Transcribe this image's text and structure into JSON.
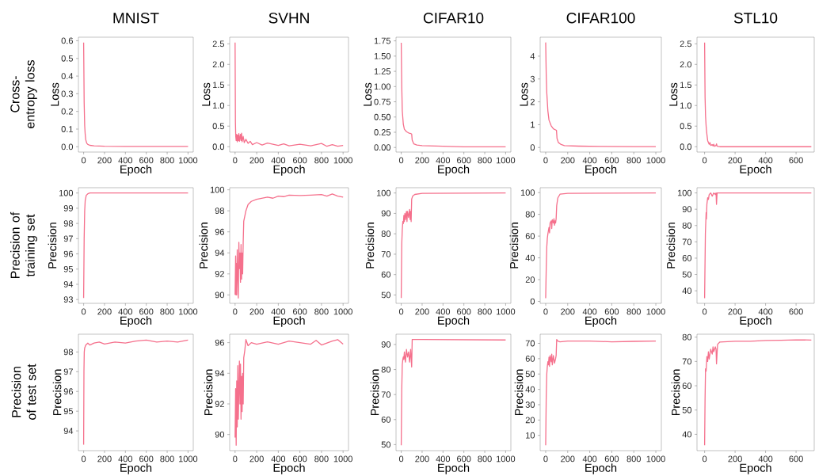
{
  "chart_data": [
    {
      "type": "line",
      "title": "MNIST",
      "xlabel": "Epoch",
      "ylabel": "Loss",
      "annotations": [
        "Cross-entropy loss"
      ],
      "color": "#f5708c",
      "xlim": [
        -50,
        1050
      ],
      "ylim": [
        -0.03,
        0.62
      ],
      "xticks": [
        0,
        200,
        400,
        600,
        800,
        1000
      ],
      "yticks": [
        {
          "value": 0,
          "label": "0.0"
        },
        0.1,
        0.2,
        0.3,
        0.4,
        0.5,
        0.6
      ],
      "x": [
        0,
        5,
        10,
        15,
        20,
        30,
        40,
        60,
        100,
        200,
        400,
        600,
        800,
        1000
      ],
      "values": [
        0.59,
        0.25,
        0.12,
        0.07,
        0.04,
        0.02,
        0.013,
        0.008,
        0.005,
        0.003,
        0.002,
        0.002,
        0.002,
        0.002
      ]
    },
    {
      "type": "line",
      "title": "SVHN",
      "xlabel": "Epoch",
      "ylabel": "Loss",
      "color": "#f5708c",
      "xlim": [
        -50,
        1050
      ],
      "ylim": [
        -0.13,
        2.66
      ],
      "xticks": [
        0,
        200,
        400,
        600,
        800,
        1000
      ],
      "yticks": [
        {
          "value": 0,
          "label": "0.0"
        },
        0.5,
        {
          "value": 1,
          "label": "1.0"
        },
        1.5,
        {
          "value": 2,
          "label": "2.0"
        },
        2.5
      ],
      "x": [
        0,
        3,
        6,
        10,
        15,
        20,
        25,
        30,
        35,
        40,
        50,
        55,
        60,
        65,
        75,
        85,
        100,
        120,
        140,
        160,
        200,
        250,
        300,
        400,
        450,
        500,
        600,
        700,
        800,
        850,
        900,
        950,
        1000
      ],
      "values": [
        2.53,
        0.6,
        0.25,
        0.15,
        0.3,
        0.12,
        0.28,
        0.15,
        0.32,
        0.13,
        0.3,
        0.15,
        0.33,
        0.12,
        0.25,
        0.1,
        0.18,
        0.08,
        0.13,
        0.05,
        0.1,
        0.04,
        0.09,
        0.03,
        0.07,
        0.02,
        0.06,
        0.02,
        0.08,
        0.01,
        0.05,
        0.01,
        0.03
      ]
    },
    {
      "type": "line",
      "title": "CIFAR10",
      "xlabel": "Epoch",
      "ylabel": "Loss",
      "color": "#f5708c",
      "xlim": [
        -50,
        1050
      ],
      "ylim": [
        -0.075,
        1.81
      ],
      "xticks": [
        0,
        200,
        400,
        600,
        800,
        1000
      ],
      "yticks": [
        {
          "value": 0,
          "label": "0.00"
        },
        0.25,
        {
          "value": 0.5,
          "label": "0.50"
        },
        0.75,
        {
          "value": 1,
          "label": "1.00"
        },
        1.25,
        {
          "value": 1.5,
          "label": "1.50"
        },
        1.75
      ],
      "x": [
        0,
        5,
        10,
        20,
        30,
        50,
        70,
        90,
        100,
        105,
        120,
        150,
        200,
        400,
        600,
        800,
        1000
      ],
      "values": [
        1.72,
        1.0,
        0.6,
        0.38,
        0.3,
        0.26,
        0.24,
        0.23,
        0.22,
        0.12,
        0.06,
        0.04,
        0.03,
        0.02,
        0.01,
        0.01,
        0.01
      ]
    },
    {
      "type": "line",
      "title": "CIFAR100",
      "xlabel": "Epoch",
      "ylabel": "Loss",
      "color": "#f5708c",
      "xlim": [
        -50,
        1050
      ],
      "ylim": [
        -0.2,
        4.83
      ],
      "xticks": [
        0,
        200,
        400,
        600,
        800,
        1000
      ],
      "yticks": [
        0,
        1,
        2,
        3,
        4
      ],
      "x": [
        0,
        5,
        10,
        20,
        30,
        50,
        70,
        90,
        98,
        103,
        115,
        140,
        170,
        300,
        500,
        800,
        1000
      ],
      "values": [
        4.6,
        3.2,
        2.4,
        1.6,
        1.2,
        0.95,
        0.82,
        0.77,
        0.75,
        0.4,
        0.22,
        0.13,
        0.08,
        0.06,
        0.05,
        0.04,
        0.04
      ]
    },
    {
      "type": "line",
      "title": "STL10",
      "xlabel": "Epoch",
      "ylabel": "Loss",
      "color": "#f5708c",
      "xlim": [
        -50,
        719
      ],
      "ylim": [
        -0.13,
        2.66
      ],
      "xticks": [
        0,
        200,
        400,
        600
      ],
      "yticks": [
        {
          "value": 0,
          "label": "0.0"
        },
        0.5,
        {
          "value": 1,
          "label": "1.0"
        },
        1.5,
        {
          "value": 2,
          "label": "2.0"
        },
        2.5
      ],
      "x": [
        0,
        3,
        6,
        10,
        15,
        20,
        25,
        30,
        35,
        40,
        50,
        55,
        60,
        65,
        75,
        78,
        82,
        100,
        200,
        400,
        600,
        700
      ],
      "values": [
        2.53,
        1.2,
        0.75,
        0.5,
        0.3,
        0.15,
        0.1,
        0.06,
        0.1,
        0.03,
        0.05,
        0.02,
        0.06,
        0.01,
        0.03,
        0.07,
        0.01,
        0,
        0,
        0,
        0,
        0
      ]
    },
    {
      "type": "line",
      "xlabel": "Epoch",
      "ylabel": "Precision",
      "annotations": [
        "Precision of training set"
      ],
      "color": "#f5708c",
      "xlim": [
        -50,
        1050
      ],
      "ylim": [
        92.75,
        100.35
      ],
      "xticks": [
        0,
        200,
        400,
        600,
        800,
        1000
      ],
      "yticks": [
        93,
        94,
        95,
        96,
        97,
        98,
        99,
        100
      ],
      "x": [
        0,
        5,
        10,
        15,
        25,
        40,
        60,
        200,
        400,
        600,
        800,
        1000
      ],
      "values": [
        93.1,
        97,
        98.8,
        99.5,
        99.85,
        99.95,
        100,
        100,
        100,
        100,
        100,
        100
      ]
    },
    {
      "type": "line",
      "xlabel": "Epoch",
      "ylabel": "Precision",
      "color": "#f5708c",
      "xlim": [
        -50,
        1050
      ],
      "ylim": [
        89.2,
        100.2
      ],
      "xticks": [
        0,
        200,
        400,
        600,
        800,
        1000
      ],
      "yticks": [
        90,
        92,
        94,
        96,
        98,
        100
      ],
      "x": [
        0,
        5,
        8,
        12,
        15,
        20,
        25,
        30,
        35,
        40,
        45,
        50,
        55,
        60,
        65,
        70,
        75,
        80,
        90,
        100,
        120,
        150,
        200,
        250,
        300,
        350,
        400,
        450,
        500,
        600,
        700,
        800,
        850,
        900,
        950,
        1000
      ],
      "values": [
        90,
        93.7,
        90,
        93,
        90,
        94.3,
        92,
        89.7,
        95,
        92.5,
        94,
        91.2,
        94.8,
        91.5,
        94,
        92,
        95,
        97,
        97.5,
        98,
        98.6,
        98.9,
        99.1,
        99.2,
        99.3,
        99.2,
        99.4,
        99.35,
        99.5,
        99.45,
        99.5,
        99.55,
        99.4,
        99.6,
        99.4,
        99.3
      ]
    },
    {
      "type": "line",
      "xlabel": "Epoch",
      "ylabel": "Precision",
      "color": "#f5708c",
      "xlim": [
        -50,
        1050
      ],
      "ylim": [
        45.9,
        102.6
      ],
      "xticks": [
        0,
        200,
        400,
        600,
        800,
        1000
      ],
      "yticks": [
        50,
        60,
        70,
        80,
        90,
        100
      ],
      "x": [
        0,
        5,
        10,
        15,
        20,
        25,
        30,
        35,
        40,
        50,
        55,
        60,
        70,
        80,
        85,
        90,
        95,
        100,
        110,
        130,
        200,
        1000
      ],
      "values": [
        48.5,
        75,
        82,
        86,
        85,
        89,
        86,
        90,
        87,
        91,
        86,
        91,
        88,
        92,
        87,
        91,
        86,
        97,
        98.5,
        99.3,
        99.8,
        100
      ]
    },
    {
      "type": "line",
      "xlabel": "Epoch",
      "ylabel": "Precision",
      "color": "#f5708c",
      "xlim": [
        -50,
        1050
      ],
      "ylim": [
        -1.8,
        104.5
      ],
      "xticks": [
        0,
        200,
        400,
        600,
        800,
        1000
      ],
      "yticks": [
        0,
        20,
        40,
        60,
        80,
        100
      ],
      "x": [
        0,
        5,
        10,
        15,
        20,
        25,
        30,
        35,
        40,
        50,
        55,
        60,
        70,
        75,
        80,
        85,
        90,
        95,
        100,
        110,
        130,
        200,
        500,
        1000
      ],
      "values": [
        3,
        30,
        50,
        58,
        62,
        65,
        68,
        63,
        72,
        74,
        67,
        75,
        72,
        76,
        70,
        74,
        72,
        76,
        88,
        95,
        98.5,
        99.3,
        99.5,
        99.7
      ]
    },
    {
      "type": "line",
      "xlabel": "Epoch",
      "ylabel": "Precision",
      "color": "#f5708c",
      "xlim": [
        -50,
        719
      ],
      "ylim": [
        32.3,
        103.2
      ],
      "xticks": [
        0,
        200,
        400,
        600
      ],
      "yticks": [
        40,
        50,
        60,
        70,
        80,
        90,
        100
      ],
      "x": [
        0,
        5,
        10,
        12,
        15,
        20,
        25,
        30,
        40,
        50,
        60,
        70,
        75,
        78,
        82,
        200,
        700
      ],
      "values": [
        35.5,
        75,
        88,
        84,
        93,
        97,
        96,
        99,
        100,
        98,
        100,
        99,
        100,
        93,
        100,
        100,
        100
      ]
    },
    {
      "type": "line",
      "xlabel": "Epoch",
      "ylabel": "Precision",
      "annotations": [
        "Precision of test set"
      ],
      "color": "#f5708c",
      "xlim": [
        -50,
        1050
      ],
      "ylim": [
        93.0,
        98.9
      ],
      "xticks": [
        0,
        200,
        400,
        600,
        800,
        1000
      ],
      "yticks": [
        94,
        95,
        96,
        97,
        98
      ],
      "x": [
        0,
        3,
        6,
        10,
        20,
        40,
        60,
        100,
        150,
        200,
        300,
        400,
        500,
        600,
        700,
        800,
        900,
        1000
      ],
      "values": [
        93.3,
        97,
        98,
        98.2,
        98.35,
        98.45,
        98.35,
        98.45,
        98.5,
        98.4,
        98.5,
        98.45,
        98.55,
        98.6,
        98.5,
        98.55,
        98.5,
        98.6
      ]
    },
    {
      "type": "line",
      "xlabel": "Epoch",
      "ylabel": "Precision",
      "color": "#f5708c",
      "xlim": [
        -50,
        1050
      ],
      "ylim": [
        88.95,
        96.55
      ],
      "xticks": [
        0,
        200,
        400,
        600,
        800,
        1000
      ],
      "yticks": [
        90,
        92,
        94,
        96
      ],
      "x": [
        0,
        5,
        10,
        15,
        20,
        25,
        30,
        35,
        40,
        45,
        50,
        55,
        60,
        65,
        70,
        75,
        80,
        90,
        100,
        120,
        150,
        200,
        300,
        400,
        500,
        600,
        700,
        750,
        800,
        900,
        950,
        1000
      ],
      "values": [
        89.8,
        93,
        89.3,
        93.5,
        90.5,
        94.5,
        91,
        93,
        94.8,
        92,
        94.6,
        91,
        93.8,
        91.5,
        94,
        92,
        95,
        95.5,
        96.2,
        95.8,
        96,
        95.9,
        96.05,
        95.9,
        96.1,
        96,
        95.9,
        96.15,
        95.85,
        96.1,
        96.2,
        95.9
      ]
    },
    {
      "type": "line",
      "xlabel": "Epoch",
      "ylabel": "Precision",
      "color": "#f5708c",
      "xlim": [
        -50,
        1050
      ],
      "ylim": [
        47.6,
        94.1
      ],
      "xticks": [
        0,
        200,
        400,
        600,
        800,
        1000
      ],
      "yticks": [
        50,
        60,
        70,
        80,
        90
      ],
      "x": [
        0,
        5,
        10,
        15,
        20,
        25,
        30,
        40,
        50,
        60,
        70,
        80,
        90,
        100,
        105,
        150,
        200,
        1000
      ],
      "values": [
        49.7,
        72,
        82,
        84,
        85,
        84,
        87,
        83,
        88,
        85,
        87,
        83,
        88,
        81,
        92,
        92,
        92,
        91.8
      ]
    },
    {
      "type": "line",
      "xlabel": "Epoch",
      "ylabel": "Precision",
      "color": "#f5708c",
      "xlim": [
        -50,
        1050
      ],
      "ylim": [
        0.05,
        75.95
      ],
      "xticks": [
        0,
        200,
        400,
        600,
        800,
        1000
      ],
      "yticks": [
        10,
        20,
        30,
        40,
        50,
        60,
        70
      ],
      "x": [
        0,
        5,
        10,
        15,
        20,
        25,
        30,
        35,
        40,
        50,
        55,
        60,
        70,
        80,
        90,
        95,
        100,
        110,
        130,
        200,
        400,
        600,
        800,
        1000
      ],
      "values": [
        3.5,
        35,
        50,
        55,
        58,
        56,
        61,
        55,
        62,
        58,
        63,
        56,
        62,
        57,
        60,
        62,
        72.5,
        71.5,
        71,
        71.5,
        71.5,
        71,
        71.3,
        71.5
      ]
    },
    {
      "type": "line",
      "xlabel": "Epoch",
      "ylabel": "Precision",
      "color": "#f5708c",
      "xlim": [
        -50,
        719
      ],
      "ylim": [
        33.3,
        81.2
      ],
      "xticks": [
        0,
        200,
        400,
        600
      ],
      "yticks": [
        40,
        50,
        60,
        70,
        80
      ],
      "x": [
        0,
        3,
        6,
        10,
        15,
        20,
        25,
        30,
        40,
        50,
        55,
        60,
        70,
        75,
        78,
        85,
        100,
        200,
        300,
        400,
        500,
        600,
        700
      ],
      "values": [
        35.5,
        55,
        67,
        66,
        72,
        70,
        74,
        71,
        75,
        73,
        76,
        74,
        76,
        75,
        69,
        77,
        78,
        78.3,
        78.3,
        78.6,
        78.7,
        78.9,
        78.8
      ]
    }
  ]
}
